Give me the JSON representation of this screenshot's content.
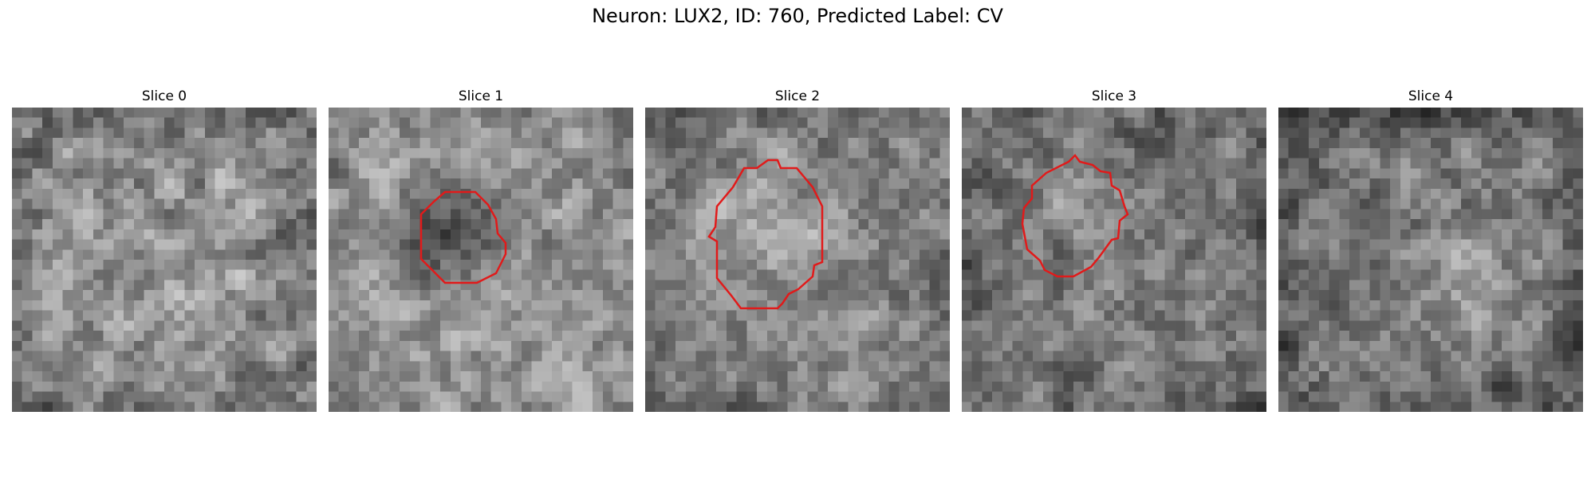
{
  "title": "Neuron: LUX2, ID: 760, Predicted Label: CV",
  "panels": [
    {
      "label": "Slice 0",
      "has_contour": false
    },
    {
      "label": "Slice 1",
      "has_contour": true
    },
    {
      "label": "Slice 2",
      "has_contour": true
    },
    {
      "label": "Slice 3",
      "has_contour": true
    },
    {
      "label": "Slice 4",
      "has_contour": false
    }
  ],
  "colors": {
    "contour": "#e11a1a",
    "background": "#ffffff"
  },
  "colormap": "gray"
}
